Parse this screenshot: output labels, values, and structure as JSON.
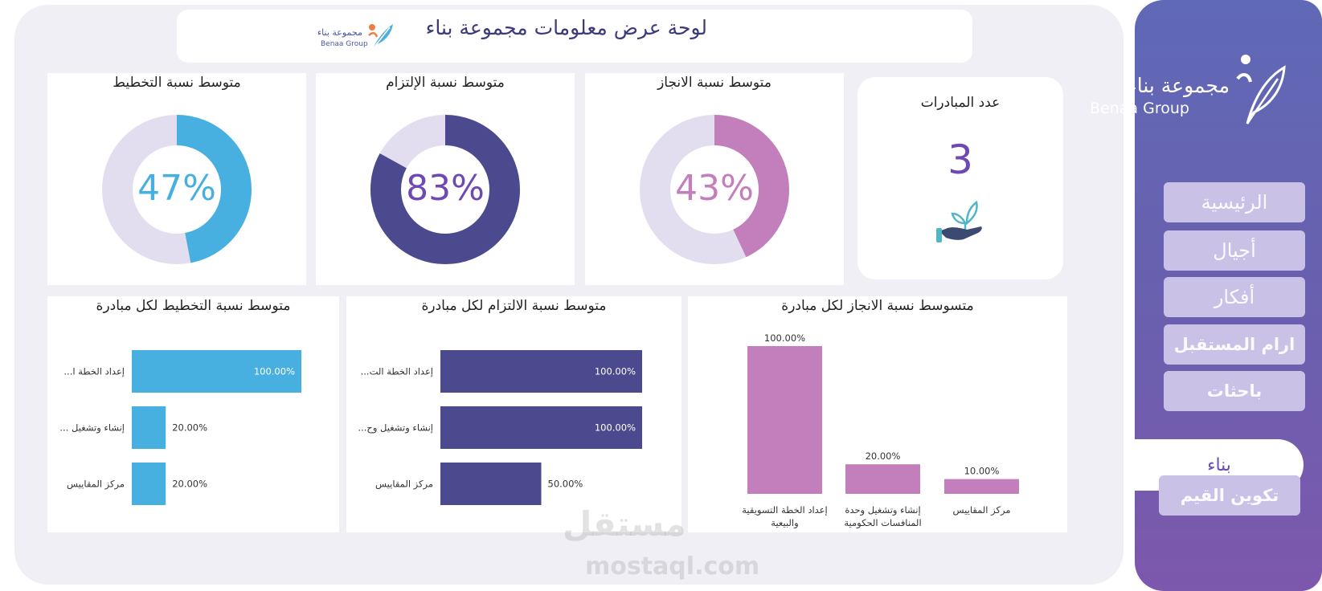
{
  "header": {
    "title": "لوحة عرض معلومات مجموعة بناء",
    "logo_ar": "مجموعة بناء",
    "logo_en": "Benaa Group"
  },
  "sidebar": {
    "logo_ar": "مجموعة بناء",
    "logo_en": "Benaa Group",
    "items": [
      {
        "label": "الرئيسية"
      },
      {
        "label": "أجيال"
      },
      {
        "label": "أفكار"
      },
      {
        "label": "ارام المستقبل"
      },
      {
        "label": "باحثات"
      },
      {
        "label": "بناء"
      },
      {
        "label": "تكوين القيم"
      }
    ],
    "active_index": 5
  },
  "kpi": {
    "title": "عدد المبادرات",
    "value": "3",
    "icon": "plant-in-hand-icon"
  },
  "gauges": [
    {
      "title": "متوسط نسبة الانجاز",
      "label": "43%",
      "value": 0.43,
      "color": "#c27fbb"
    },
    {
      "title": "متوسط نسبة الإلتزام",
      "label": "83%",
      "value": 0.83,
      "color": "#4b4a8e"
    },
    {
      "title": "متوسط نسبة التخطيط",
      "label": "47%",
      "value": 0.47,
      "color": "#48b0e0"
    }
  ],
  "colors": {
    "track": "#e2def0",
    "text_number": "#6f49b3",
    "planning": "#48b0e0",
    "commitment": "#4b4a8e",
    "achievement": "#c27fbb"
  },
  "chart_data": [
    {
      "type": "bar",
      "orientation": "vertical",
      "title": "متسوسط نسبة الانجاز لكل مبادرة",
      "categories": [
        "إعداد الخطة التسويقية والبيعية",
        "إنشاء وتشغيل وحدة المنافسات الحكومية",
        "مركز المقاييس"
      ],
      "values": [
        100,
        20,
        10
      ],
      "value_labels": [
        "100.00%",
        "20.00%",
        "10.00%"
      ],
      "ylim": [
        0,
        100
      ]
    },
    {
      "type": "bar",
      "orientation": "horizontal",
      "title": "متوسط نسبة الالتزام لكل مبادرة",
      "categories": [
        "...إعداد الخطة الت",
        "...إنشاء وتشغيل وح",
        "مركز المقاييس"
      ],
      "values": [
        100,
        100,
        50
      ],
      "value_labels": [
        "100.00%",
        "100.00%",
        "50.00%"
      ],
      "xlim": [
        0,
        100
      ]
    },
    {
      "type": "bar",
      "orientation": "horizontal",
      "title": "متوسط نسبة التخطيط لكل مبادرة",
      "categories": [
        "...إعداد الخطة ا",
        "... إنشاء وتشغيل",
        "مركز المقاييس"
      ],
      "values": [
        100,
        20,
        20
      ],
      "value_labels": [
        "100.00%",
        "20.00%",
        "20.00%"
      ],
      "xlim": [
        0,
        100
      ]
    }
  ],
  "watermark": {
    "ar": "مستقل",
    "en": "mostaql.com"
  }
}
